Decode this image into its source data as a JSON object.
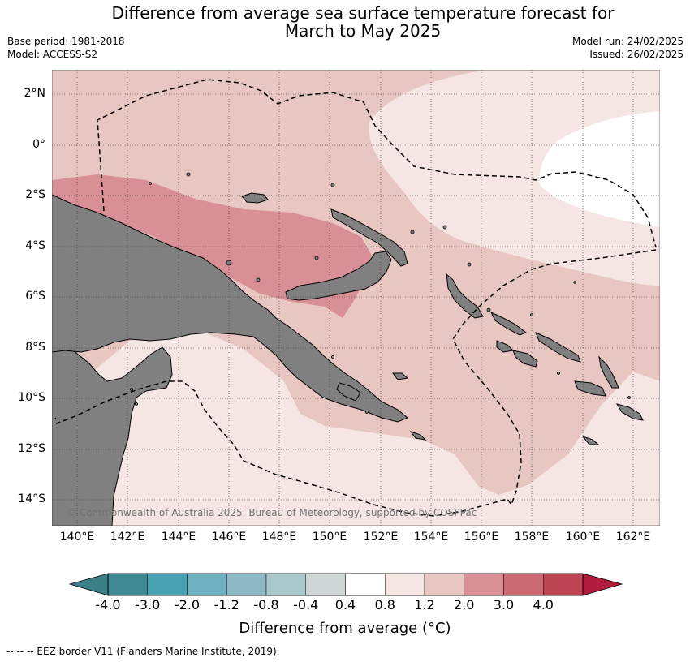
{
  "header": {
    "title_line1": "Difference from average sea surface temperature forecast for",
    "title_line2": "March to May 2025",
    "base_period": "Base period: 1981-2018",
    "model": "Model: ACCESS-S2",
    "model_run": "Model run: 24/02/2025",
    "issued": "Issued: 26/02/2025"
  },
  "map": {
    "lat_labels": [
      "2°N",
      "0°",
      "2°S",
      "4°S",
      "6°S",
      "8°S",
      "10°S",
      "12°S",
      "14°S"
    ],
    "lon_labels": [
      "140°E",
      "142°E",
      "144°E",
      "146°E",
      "148°E",
      "150°E",
      "152°E",
      "154°E",
      "156°E",
      "158°E",
      "160°E",
      "162°E"
    ],
    "copyright": "© Commonwealth of Australia 2025, Bureau of Meteorology, supported by COSPPac",
    "land_color": "#808080",
    "ocean_bin_colors": {
      "0.4_0.8": "#f5e6e3",
      "0.8_1.2": "#e8c6c2",
      "1.2_2.0": "#d98f96",
      "-0.4_0.4": "#ffffff"
    }
  },
  "colorbar": {
    "ticks": [
      "-4.0",
      "-3.0",
      "-2.0",
      "-1.2",
      "-0.8",
      "-0.4",
      "0.4",
      "0.8",
      "1.2",
      "2.0",
      "3.0",
      "4.0"
    ],
    "colors": [
      "#3f8791",
      "#48a2b1",
      "#6eb1c0",
      "#8db9c4",
      "#a9c8cc",
      "#d0d6d6",
      "#ffffff",
      "#f5e6e3",
      "#e8c6c2",
      "#d98f96",
      "#cc6a74",
      "#bd4553"
    ],
    "low_extend_color": "#3b7f88",
    "high_extend_color": "#b11c3d",
    "label": "Difference from average (°C)"
  },
  "legend": {
    "eez_text": "--  --  -- EEZ border V11 (Flanders Marine Institute, 2019)."
  }
}
